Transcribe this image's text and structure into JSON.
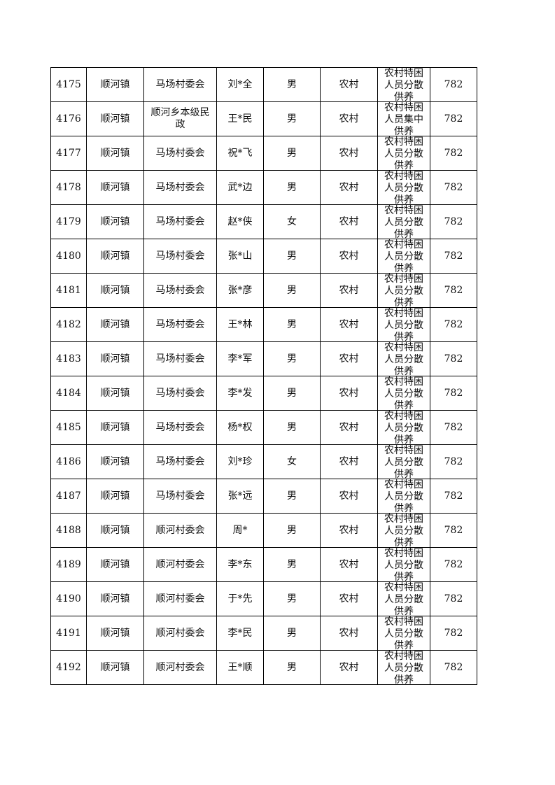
{
  "table": {
    "rows": [
      [
        "4175",
        "顺河镇",
        "马场村委会",
        "刘*全",
        "男",
        "农村",
        "农村特困人员分散供养",
        "782"
      ],
      [
        "4176",
        "顺河镇",
        "顺河乡本级民政",
        "王*民",
        "男",
        "农村",
        "农村特困人员集中供养",
        "782"
      ],
      [
        "4177",
        "顺河镇",
        "马场村委会",
        "祝*飞",
        "男",
        "农村",
        "农村特困人员分散供养",
        "782"
      ],
      [
        "4178",
        "顺河镇",
        "马场村委会",
        "武*边",
        "男",
        "农村",
        "农村特困人员分散供养",
        "782"
      ],
      [
        "4179",
        "顺河镇",
        "马场村委会",
        "赵*侠",
        "女",
        "农村",
        "农村特困人员分散供养",
        "782"
      ],
      [
        "4180",
        "顺河镇",
        "马场村委会",
        "张*山",
        "男",
        "农村",
        "农村特困人员分散供养",
        "782"
      ],
      [
        "4181",
        "顺河镇",
        "马场村委会",
        "张*彦",
        "男",
        "农村",
        "农村特困人员分散供养",
        "782"
      ],
      [
        "4182",
        "顺河镇",
        "马场村委会",
        "王*林",
        "男",
        "农村",
        "农村特困人员分散供养",
        "782"
      ],
      [
        "4183",
        "顺河镇",
        "马场村委会",
        "李*军",
        "男",
        "农村",
        "农村特困人员分散供养",
        "782"
      ],
      [
        "4184",
        "顺河镇",
        "马场村委会",
        "李*发",
        "男",
        "农村",
        "农村特困人员分散供养",
        "782"
      ],
      [
        "4185",
        "顺河镇",
        "马场村委会",
        "杨*权",
        "男",
        "农村",
        "农村特困人员分散供养",
        "782"
      ],
      [
        "4186",
        "顺河镇",
        "马场村委会",
        "刘*珍",
        "女",
        "农村",
        "农村特困人员分散供养",
        "782"
      ],
      [
        "4187",
        "顺河镇",
        "马场村委会",
        "张*远",
        "男",
        "农村",
        "农村特困人员分散供养",
        "782"
      ],
      [
        "4188",
        "顺河镇",
        "顺河村委会",
        "周*",
        "男",
        "农村",
        "农村特困人员分散供养",
        "782"
      ],
      [
        "4189",
        "顺河镇",
        "顺河村委会",
        "李*东",
        "男",
        "农村",
        "农村特困人员分散供养",
        "782"
      ],
      [
        "4190",
        "顺河镇",
        "顺河村委会",
        "于*先",
        "男",
        "农村",
        "农村特困人员分散供养",
        "782"
      ],
      [
        "4191",
        "顺河镇",
        "顺河村委会",
        "李*民",
        "男",
        "农村",
        "农村特困人员分散供养",
        "782"
      ],
      [
        "4192",
        "顺河镇",
        "顺河村委会",
        "王*顺",
        "男",
        "农村",
        "农村特困人员分散供养",
        "782"
      ]
    ]
  }
}
